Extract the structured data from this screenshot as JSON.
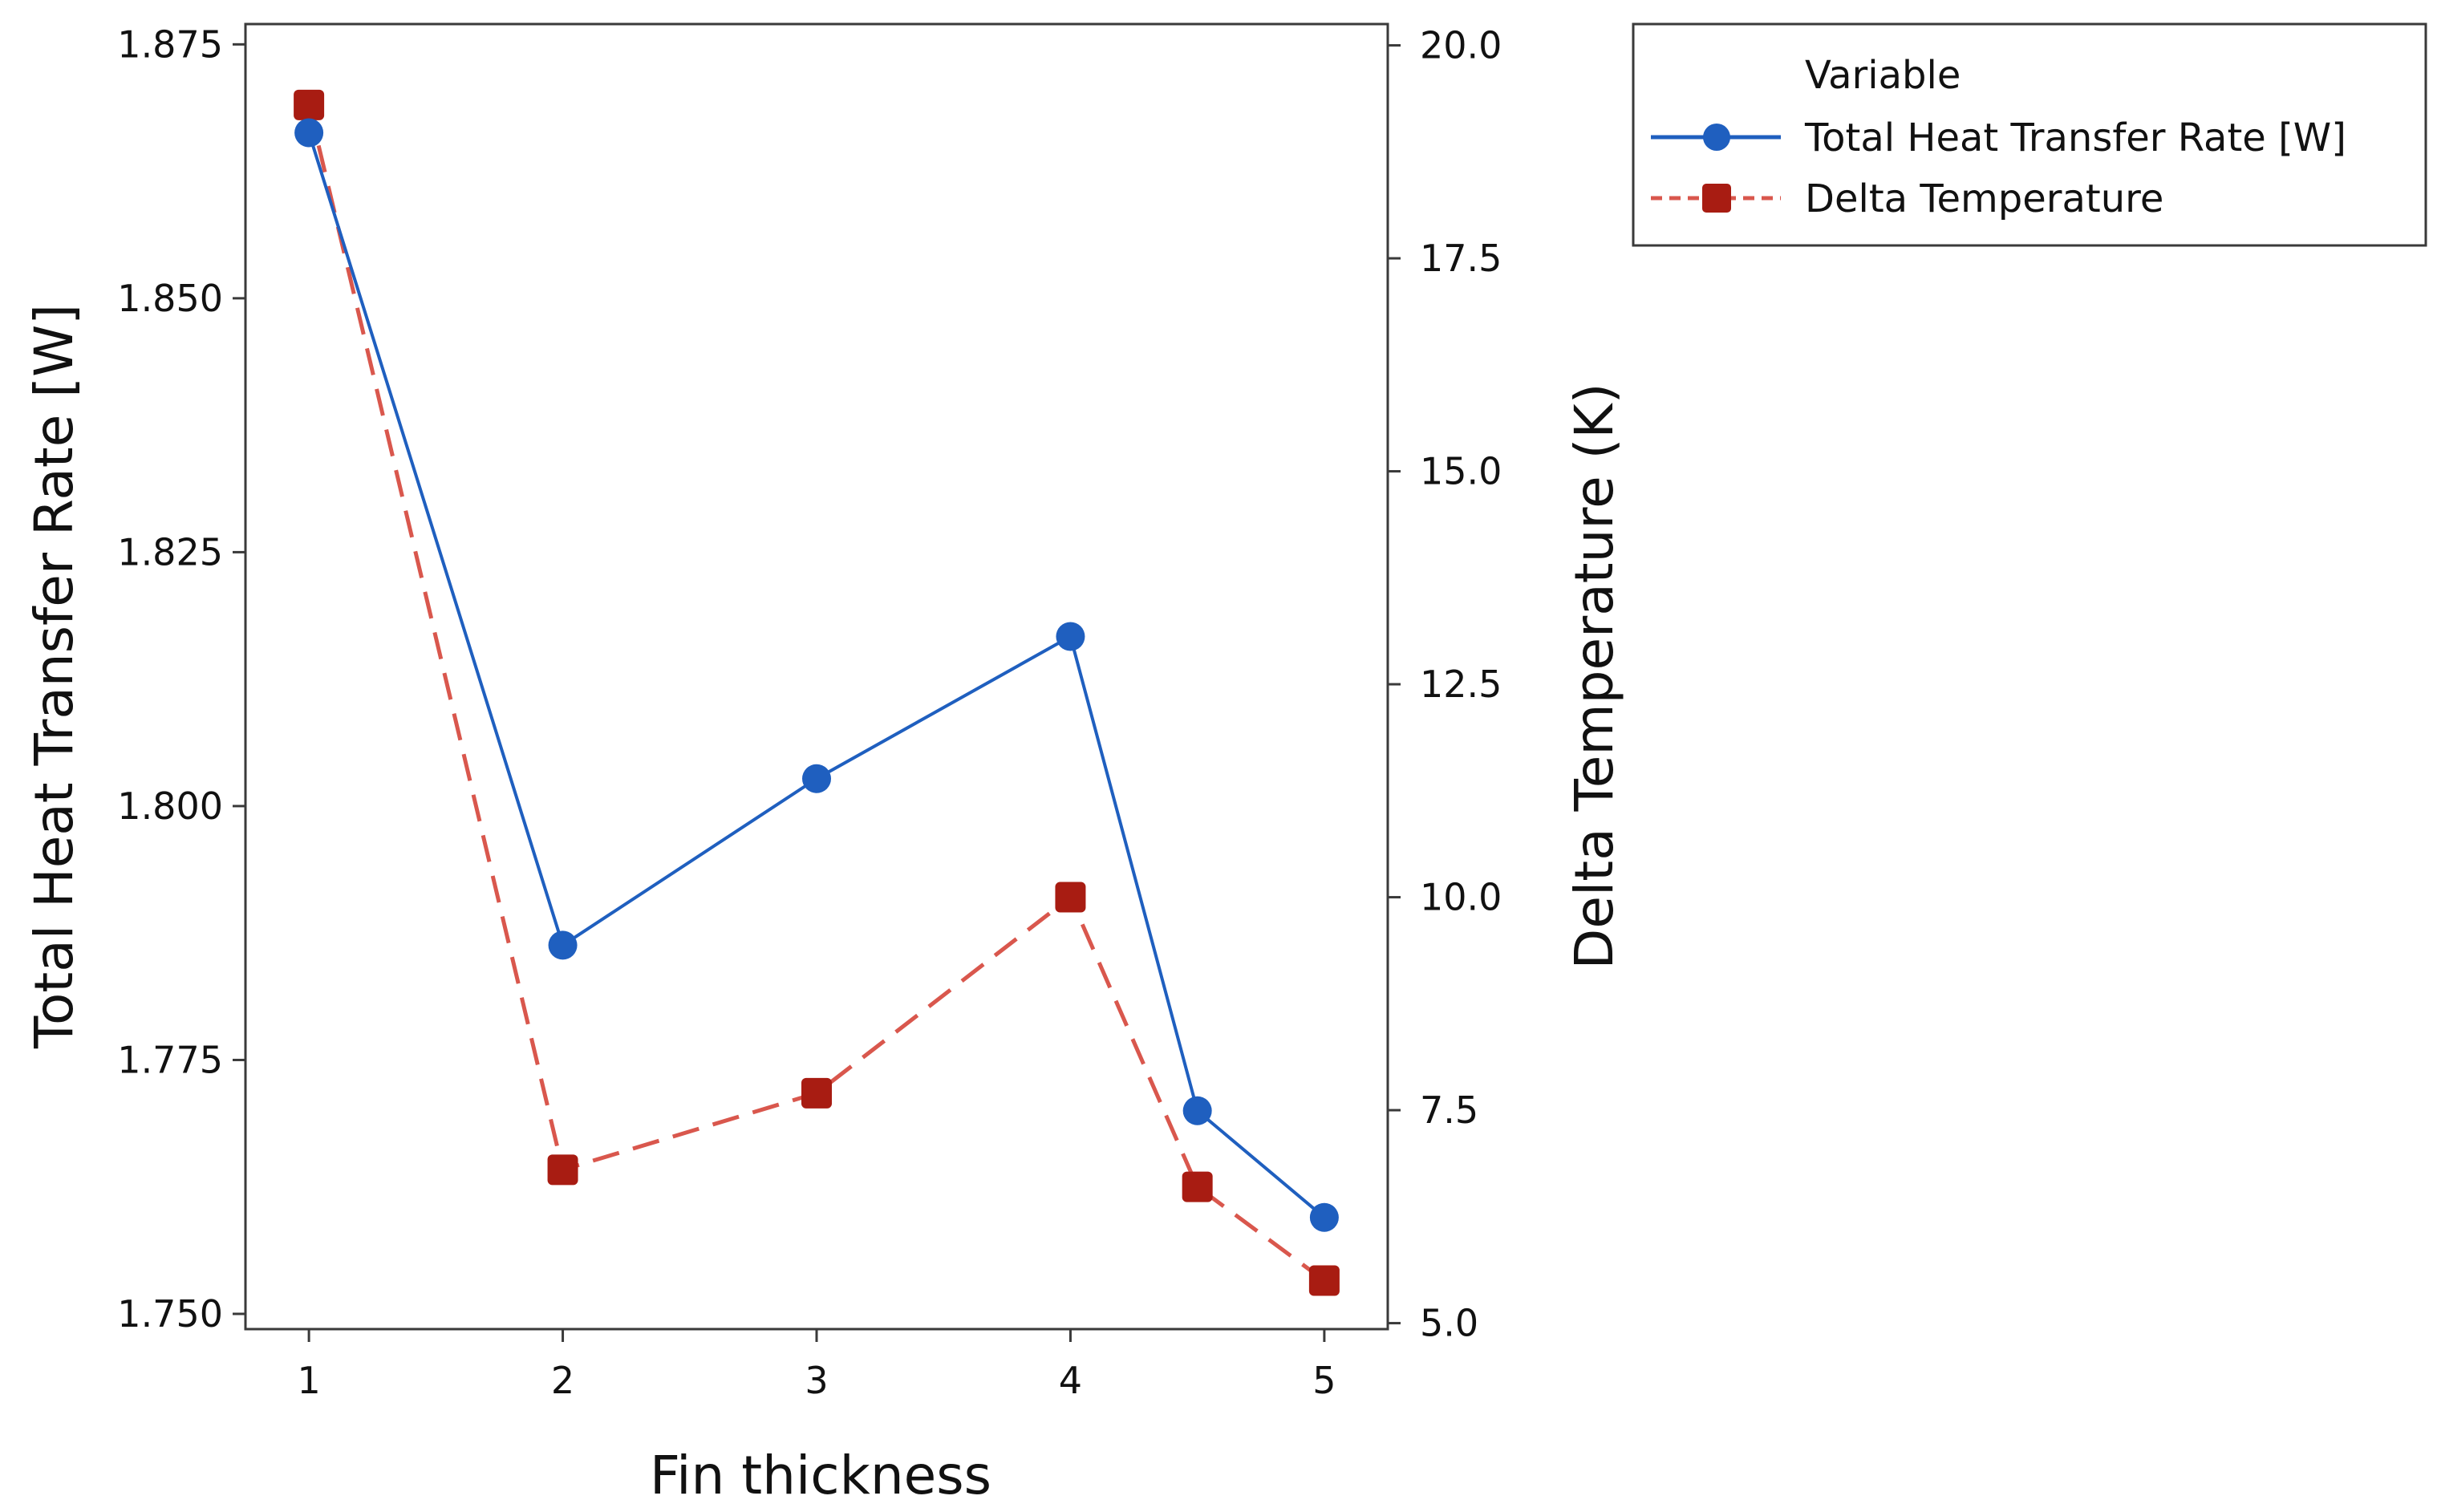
{
  "chart_data": {
    "type": "line",
    "title": "",
    "xlabel": "Fin thickness",
    "ylabel": "Total Heat Transfer Rate [W]",
    "y2label": "Delta Temperature (K)",
    "x": [
      1,
      2,
      3,
      4,
      4.5,
      5
    ],
    "x_ticks": [
      "1",
      "2",
      "3",
      "4",
      "5"
    ],
    "x_tick_values": [
      1,
      2,
      3,
      4,
      5
    ],
    "xlim": [
      0.75,
      5.25
    ],
    "ylim": [
      1.7485,
      1.877
    ],
    "y_ticks": [
      "1.750",
      "1.775",
      "1.800",
      "1.825",
      "1.850",
      "1.875"
    ],
    "y2lim": [
      4.93,
      20.25
    ],
    "y2_ticks": [
      "5.0",
      "7.5",
      "10.0",
      "12.5",
      "15.0",
      "17.5",
      "20.0"
    ],
    "grid": false,
    "legend": {
      "title": "Variable",
      "position": "outside-top-right"
    },
    "series": [
      {
        "name": "Total Heat Transfer Rate [W]",
        "axis": "left",
        "color": "#1f5fbf",
        "marker": "circle",
        "line": "solid",
        "values": [
          1.8663,
          1.7863,
          1.8027,
          1.8167,
          1.77,
          1.7595
        ]
      },
      {
        "name": "Delta Temperature",
        "axis": "right",
        "color": "#a81c12",
        "marker": "square",
        "line": "dashed",
        "values": [
          19.3,
          6.8,
          7.7,
          10.0,
          6.6,
          5.5
        ]
      }
    ]
  }
}
